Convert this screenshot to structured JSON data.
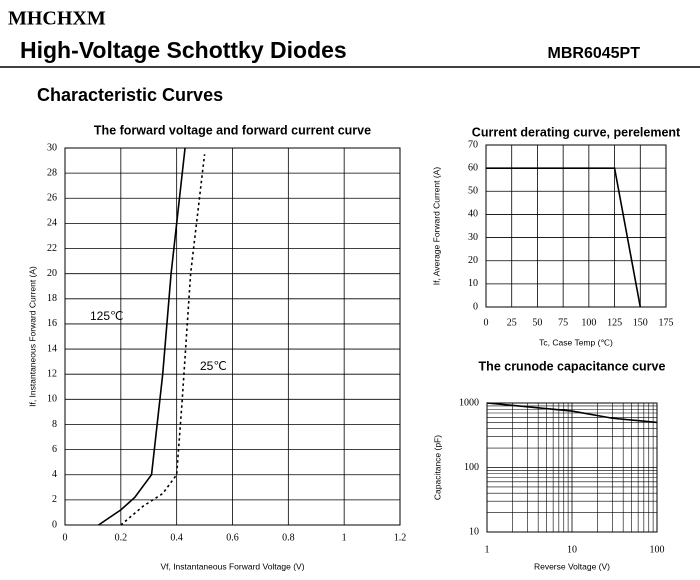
{
  "header": {
    "logo": "MHCHXM",
    "title": "High-Voltage Schottky Diodes",
    "part_number": "MBR6045PT",
    "section": "Characteristic Curves"
  },
  "chart_data": [
    {
      "type": "line",
      "title": "The forward voltage and forward current curve",
      "xlabel": "Vf, Instantaneous Forward Voltage (V)",
      "ylabel": "If, Instantaneous Forward Current (A)",
      "xlim": [
        0,
        1.2
      ],
      "xticks": [
        0,
        0.2,
        0.4,
        0.6,
        0.8,
        1,
        1.2
      ],
      "ylim": [
        0,
        30
      ],
      "yticks": [
        0,
        2,
        4,
        6,
        8,
        10,
        12,
        14,
        16,
        18,
        20,
        22,
        24,
        26,
        28,
        30
      ],
      "grid": true,
      "series": [
        {
          "name": "125℃",
          "color": "#000000",
          "dash": "solid",
          "x": [
            0.12,
            0.2,
            0.25,
            0.31,
            0.35,
            0.38,
            0.43
          ],
          "values": [
            0,
            1.2,
            2.2,
            4,
            12,
            20,
            30
          ]
        },
        {
          "name": "25℃",
          "color": "#000000",
          "dash": "dotted",
          "x": [
            0.2,
            0.28,
            0.35,
            0.4,
            0.42,
            0.45,
            0.5
          ],
          "values": [
            0,
            1.5,
            2.5,
            4,
            10,
            20,
            29.5
          ]
        }
      ]
    },
    {
      "type": "line",
      "title": "Current derating curve, perelement",
      "xlabel": "Tc, Case Temp (℃)",
      "ylabel": "If, Average Forward Current (A)",
      "xlim": [
        0,
        175
      ],
      "xticks": [
        0,
        25,
        50,
        75,
        100,
        125,
        150,
        175
      ],
      "ylim": [
        0,
        70
      ],
      "yticks": [
        0,
        10,
        20,
        30,
        40,
        50,
        60,
        70
      ],
      "grid": true,
      "series": [
        {
          "color": "#000000",
          "dash": "solid",
          "x": [
            0,
            125,
            150
          ],
          "values": [
            60,
            60,
            0
          ]
        }
      ]
    },
    {
      "type": "line",
      "title": "The crunode capacitance curve",
      "xlabel": "Reverse Voltage (V)",
      "ylabel": "Capacitance (pF)",
      "xscale": "log",
      "yscale": "log",
      "xlim": [
        1,
        100
      ],
      "xticks": [
        1,
        10,
        100
      ],
      "ylim": [
        10,
        1000
      ],
      "yticks": [
        10,
        100,
        1000
      ],
      "grid": true,
      "minor_grid": true,
      "series": [
        {
          "color": "#000000",
          "dash": "solid",
          "x": [
            1,
            10,
            30,
            100
          ],
          "values": [
            1000,
            750,
            580,
            500
          ]
        }
      ]
    }
  ]
}
